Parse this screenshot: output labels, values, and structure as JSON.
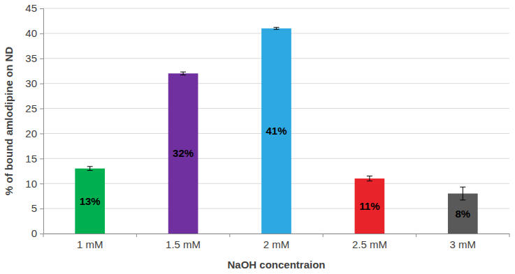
{
  "chart_data": {
    "type": "bar",
    "categories": [
      "1 mM",
      "1.5 mM",
      "2 mM",
      "2.5 mM",
      "3 mM"
    ],
    "values": [
      13,
      32,
      41,
      11,
      8
    ],
    "value_labels": [
      "13%",
      "32%",
      "41%",
      "11%",
      "8%"
    ],
    "errors": [
      0.4,
      0.3,
      0.2,
      0.5,
      1.3
    ],
    "colors": [
      "#00b050",
      "#7030a0",
      "#2ea8e0",
      "#e8242a",
      "#595959"
    ],
    "x_label": "NaOH concentraion",
    "y_label": "% of bound amlodipine on ND",
    "ylim": [
      0,
      45
    ],
    "yticks": [
      0,
      5,
      10,
      15,
      20,
      25,
      30,
      35,
      40,
      45
    ],
    "grid": true,
    "data_labels": true
  }
}
